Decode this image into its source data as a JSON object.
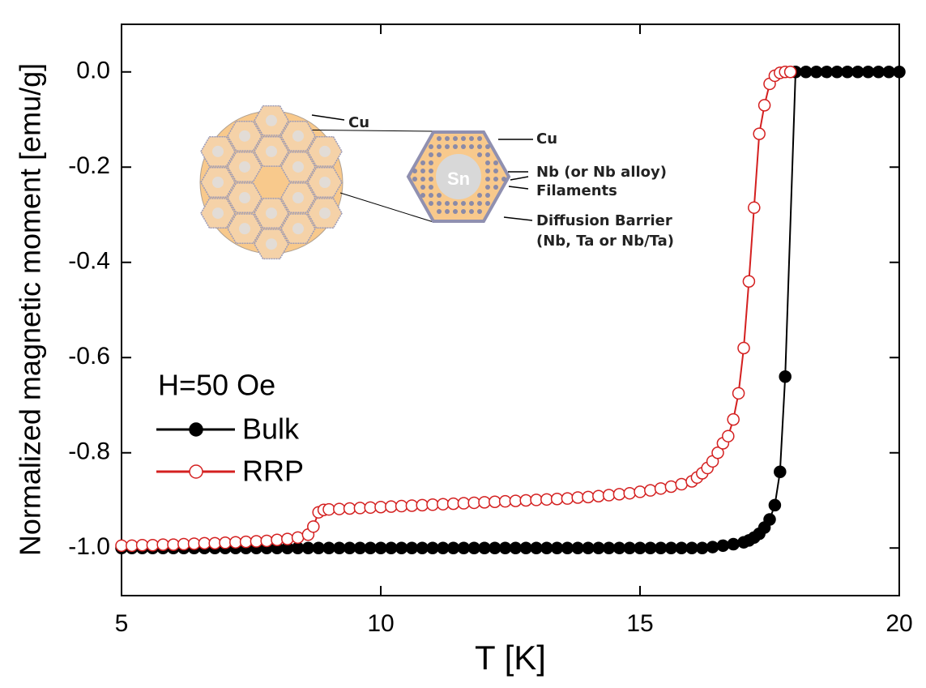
{
  "chart_data": {
    "type": "line",
    "y_label": "Normalized magnetic moment [emu/g]",
    "x_label": "T [K]",
    "legend_title": "H=50 Oe",
    "legend_loc": "center left",
    "annotations": [
      "Cu",
      "Cu",
      "Sn",
      "Nb (or Nb alloy)",
      "Filaments",
      "Diffusion Barrier",
      "(Nb, Ta or Nb/Ta)"
    ],
    "xlim": [
      5,
      20
    ],
    "xticks": [
      5,
      10,
      15,
      20
    ],
    "ylim": [
      -1.1,
      0.1
    ],
    "yticks": [
      {
        "value": 0,
        "label": "0.0"
      },
      -0.2,
      -0.4,
      -0.6,
      -0.8,
      {
        "value": -1,
        "label": "-1.0"
      }
    ],
    "series": [
      {
        "name": "Bulk",
        "color": "#000000",
        "marker": "filled",
        "x": [
          5,
          5.2,
          5.4,
          5.6,
          5.8,
          6,
          6.2,
          6.4,
          6.6,
          6.8,
          7,
          7.2,
          7.4,
          7.6,
          7.8,
          8,
          8.2,
          8.4,
          8.6,
          8.8,
          9,
          9.2,
          9.4,
          9.6,
          9.8,
          10,
          10.2,
          10.4,
          10.6,
          10.8,
          11,
          11.2,
          11.4,
          11.6,
          11.8,
          12,
          12.2,
          12.4,
          12.6,
          12.8,
          13,
          13.2,
          13.4,
          13.6,
          13.8,
          14,
          14.2,
          14.4,
          14.6,
          14.8,
          15,
          15.2,
          15.4,
          15.6,
          15.8,
          16,
          16.2,
          16.4,
          16.6,
          16.8,
          17,
          17.1,
          17.2,
          17.3,
          17.4,
          17.5,
          17.6,
          17.7,
          17.8,
          18,
          18.2,
          18.4,
          18.6,
          18.8,
          19,
          19.2,
          19.4,
          19.6,
          19.8,
          20
        ],
        "values": [
          -1,
          -1,
          -1,
          -1,
          -1,
          -1,
          -1,
          -1,
          -1,
          -1,
          -1,
          -1,
          -1,
          -1,
          -1,
          -1,
          -1,
          -1,
          -1,
          -1,
          -1,
          -1,
          -1,
          -1,
          -1,
          -1,
          -1,
          -1,
          -1,
          -1,
          -1,
          -1,
          -1,
          -1,
          -1,
          -1,
          -1,
          -1,
          -1,
          -1,
          -1,
          -1,
          -1,
          -1,
          -1,
          -1,
          -1,
          -1,
          -1,
          -1,
          -1,
          -1,
          -1,
          -1,
          -1,
          -1,
          -1,
          -0.998,
          -0.995,
          -0.992,
          -0.988,
          -0.984,
          -0.978,
          -0.97,
          -0.957,
          -0.94,
          -0.91,
          -0.84,
          -0.64,
          0,
          0,
          0,
          0,
          0,
          0,
          0,
          0,
          0,
          0,
          0
        ]
      },
      {
        "name": "RRP",
        "color": "#d42020",
        "marker": "open",
        "x": [
          5,
          5.2,
          5.4,
          5.6,
          5.8,
          6,
          6.2,
          6.4,
          6.6,
          6.8,
          7,
          7.2,
          7.4,
          7.6,
          7.8,
          8,
          8.2,
          8.4,
          8.6,
          8.7,
          8.8,
          8.9,
          9,
          9.2,
          9.4,
          9.6,
          9.8,
          10,
          10.2,
          10.4,
          10.6,
          10.8,
          11,
          11.2,
          11.4,
          11.6,
          11.8,
          12,
          12.2,
          12.4,
          12.6,
          12.8,
          13,
          13.2,
          13.4,
          13.6,
          13.8,
          14,
          14.2,
          14.4,
          14.6,
          14.8,
          15,
          15.2,
          15.4,
          15.6,
          15.8,
          16,
          16.1,
          16.2,
          16.3,
          16.4,
          16.5,
          16.6,
          16.7,
          16.8,
          16.9,
          17,
          17.1,
          17.2,
          17.3,
          17.4,
          17.5,
          17.6,
          17.7,
          17.8,
          17.9
        ],
        "values": [
          -0.995,
          -0.995,
          -0.994,
          -0.994,
          -0.993,
          -0.993,
          -0.992,
          -0.991,
          -0.99,
          -0.99,
          -0.989,
          -0.988,
          -0.987,
          -0.986,
          -0.985,
          -0.983,
          -0.981,
          -0.978,
          -0.972,
          -0.955,
          -0.925,
          -0.92,
          -0.919,
          -0.918,
          -0.917,
          -0.916,
          -0.915,
          -0.914,
          -0.913,
          -0.912,
          -0.911,
          -0.91,
          -0.909,
          -0.908,
          -0.907,
          -0.906,
          -0.905,
          -0.904,
          -0.903,
          -0.902,
          -0.901,
          -0.9,
          -0.899,
          -0.898,
          -0.897,
          -0.896,
          -0.894,
          -0.893,
          -0.891,
          -0.889,
          -0.887,
          -0.885,
          -0.882,
          -0.879,
          -0.875,
          -0.871,
          -0.866,
          -0.86,
          -0.852,
          -0.843,
          -0.832,
          -0.818,
          -0.8,
          -0.78,
          -0.765,
          -0.73,
          -0.675,
          -0.58,
          -0.44,
          -0.285,
          -0.13,
          -0.07,
          -0.025,
          -0.008,
          -0.002,
          0,
          0
        ]
      }
    ]
  }
}
